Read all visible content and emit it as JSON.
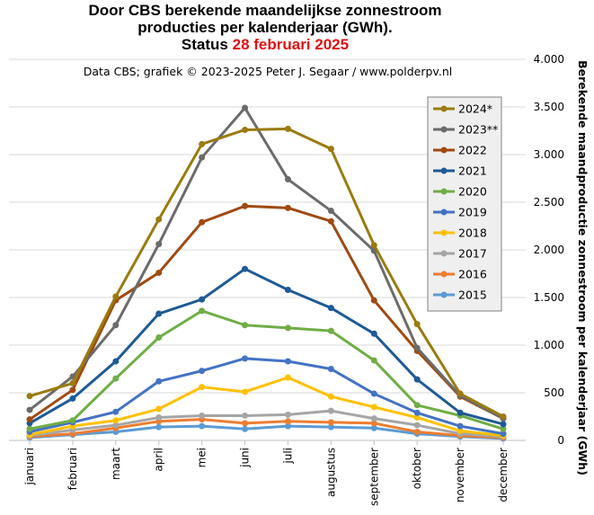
{
  "header": {
    "title_line1": "Door CBS berekende maandelijkse  zonnestroom",
    "title_line2": "producties per kalenderjaar (GWh).",
    "status_label": "Status",
    "status_date": "28 februari 2025",
    "credit": "Data CBS; grafiek © 2023-2025  Peter J. Segaar / www.polderpv.nl"
  },
  "chart_data": {
    "type": "line",
    "title": "Door CBS berekende maandelijkse  zonnestroom producties per kalenderjaar (GWh).",
    "xlabel": "",
    "ylabel": "Berekende maandproductie  zonnestroom  per kalenderjaar (GWh)",
    "ylim": [
      0,
      4000
    ],
    "yticks": [
      0,
      500,
      1000,
      1500,
      2000,
      2500,
      3000,
      3500,
      4000
    ],
    "ytick_labels": [
      "0",
      "500",
      "1.000",
      "1.500",
      "2.000",
      "2.500",
      "3.000",
      "3.500",
      "4.000"
    ],
    "grid": "horizontal",
    "legend_position": "top-right",
    "categories": [
      "januari",
      "februari",
      "maart",
      "april",
      "mei",
      "juni",
      "juli",
      "augustus",
      "september",
      "oktober",
      "november",
      "december"
    ],
    "series": [
      {
        "name": "2024*",
        "color": "#9a7b0e",
        "values": [
          465,
          600,
          1510,
          2320,
          3110,
          3260,
          3270,
          3060,
          2050,
          1220,
          490,
          250
        ]
      },
      {
        "name": "2023**",
        "color": "#6b6b6b",
        "values": [
          320,
          670,
          1210,
          2060,
          2970,
          3490,
          2740,
          2410,
          1990,
          970,
          470,
          230
        ]
      },
      {
        "name": "2022",
        "color": "#a04a12",
        "values": [
          220,
          530,
          1470,
          1760,
          2290,
          2460,
          2440,
          2300,
          1470,
          940,
          460,
          230
        ]
      },
      {
        "name": "2021",
        "color": "#1f5a96",
        "values": [
          180,
          440,
          830,
          1330,
          1480,
          1800,
          1580,
          1390,
          1120,
          640,
          290,
          170
        ]
      },
      {
        "name": "2020",
        "color": "#70ad47",
        "values": [
          120,
          210,
          650,
          1080,
          1360,
          1210,
          1180,
          1150,
          840,
          370,
          260,
          120
        ]
      },
      {
        "name": "2019",
        "color": "#4472c4",
        "values": [
          90,
          190,
          300,
          620,
          730,
          860,
          830,
          750,
          490,
          290,
          150,
          70
        ]
      },
      {
        "name": "2018",
        "color": "#ffc000",
        "values": [
          60,
          150,
          210,
          330,
          560,
          510,
          660,
          460,
          350,
          240,
          100,
          50
        ]
      },
      {
        "name": "2017",
        "color": "#a5a5a5",
        "values": [
          50,
          110,
          160,
          240,
          260,
          260,
          270,
          310,
          230,
          160,
          70,
          40
        ]
      },
      {
        "name": "2016",
        "color": "#ed7d31",
        "values": [
          40,
          70,
          130,
          200,
          220,
          180,
          200,
          190,
          180,
          90,
          50,
          30
        ]
      },
      {
        "name": "2015",
        "color": "#5b9bd5",
        "values": [
          30,
          60,
          90,
          140,
          150,
          120,
          150,
          140,
          130,
          70,
          40,
          20
        ]
      }
    ]
  }
}
